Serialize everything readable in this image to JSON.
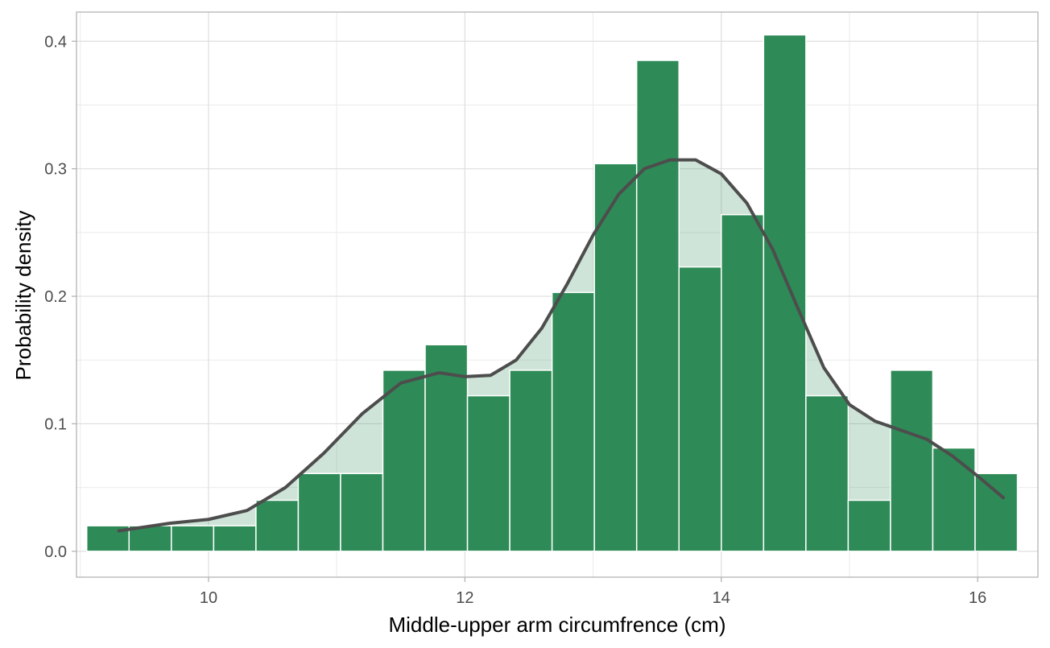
{
  "chart_data": {
    "type": "bar",
    "title": "",
    "xlabel": "Middle-upper arm circumfrence (cm)",
    "ylabel": "Probability density",
    "xlim": [
      8.97,
      16.47
    ],
    "ylim": [
      -0.0203,
      0.4229
    ],
    "x_ticks": [
      10,
      12,
      14,
      16
    ],
    "x_tick_labels": [
      "10",
      "12",
      "14",
      "16"
    ],
    "y_ticks": [
      0.0,
      0.1,
      0.2,
      0.3,
      0.4
    ],
    "y_tick_labels": [
      "0.0",
      "0.1",
      "0.2",
      "0.3",
      "0.4"
    ],
    "grid": true,
    "legend": "none",
    "histogram": {
      "bin_width": 0.33,
      "bin_starts": [
        9.05,
        9.38,
        9.71,
        10.04,
        10.37,
        10.7,
        11.03,
        11.36,
        11.69,
        12.02,
        12.35,
        12.68,
        13.01,
        13.34,
        13.67,
        14.0,
        14.33,
        14.66,
        14.99,
        15.32,
        15.65,
        15.98
      ],
      "densities": [
        0.02,
        0.02,
        0.02,
        0.02,
        0.04,
        0.061,
        0.061,
        0.142,
        0.162,
        0.122,
        0.142,
        0.203,
        0.304,
        0.385,
        0.223,
        0.264,
        0.405,
        0.122,
        0.04,
        0.142,
        0.081,
        0.061
      ],
      "fill_color": "#2e8b57",
      "edge_color": "#ffffff"
    },
    "density_curve": {
      "x": [
        9.3,
        9.7,
        10.0,
        10.3,
        10.6,
        10.9,
        11.2,
        11.5,
        11.8,
        12.0,
        12.2,
        12.4,
        12.6,
        12.8,
        13.0,
        13.2,
        13.4,
        13.6,
        13.8,
        14.0,
        14.2,
        14.4,
        14.6,
        14.8,
        15.0,
        15.2,
        15.4,
        15.6,
        15.8,
        16.0,
        16.2
      ],
      "y": [
        0.016,
        0.022,
        0.025,
        0.032,
        0.05,
        0.077,
        0.108,
        0.132,
        0.14,
        0.137,
        0.138,
        0.15,
        0.175,
        0.21,
        0.248,
        0.28,
        0.3,
        0.307,
        0.307,
        0.296,
        0.273,
        0.237,
        0.19,
        0.144,
        0.115,
        0.102,
        0.095,
        0.088,
        0.075,
        0.059,
        0.042
      ],
      "line_color": "#4d4d4d",
      "fill_color": "#2e8b57",
      "fill_opacity": 0.23
    }
  }
}
